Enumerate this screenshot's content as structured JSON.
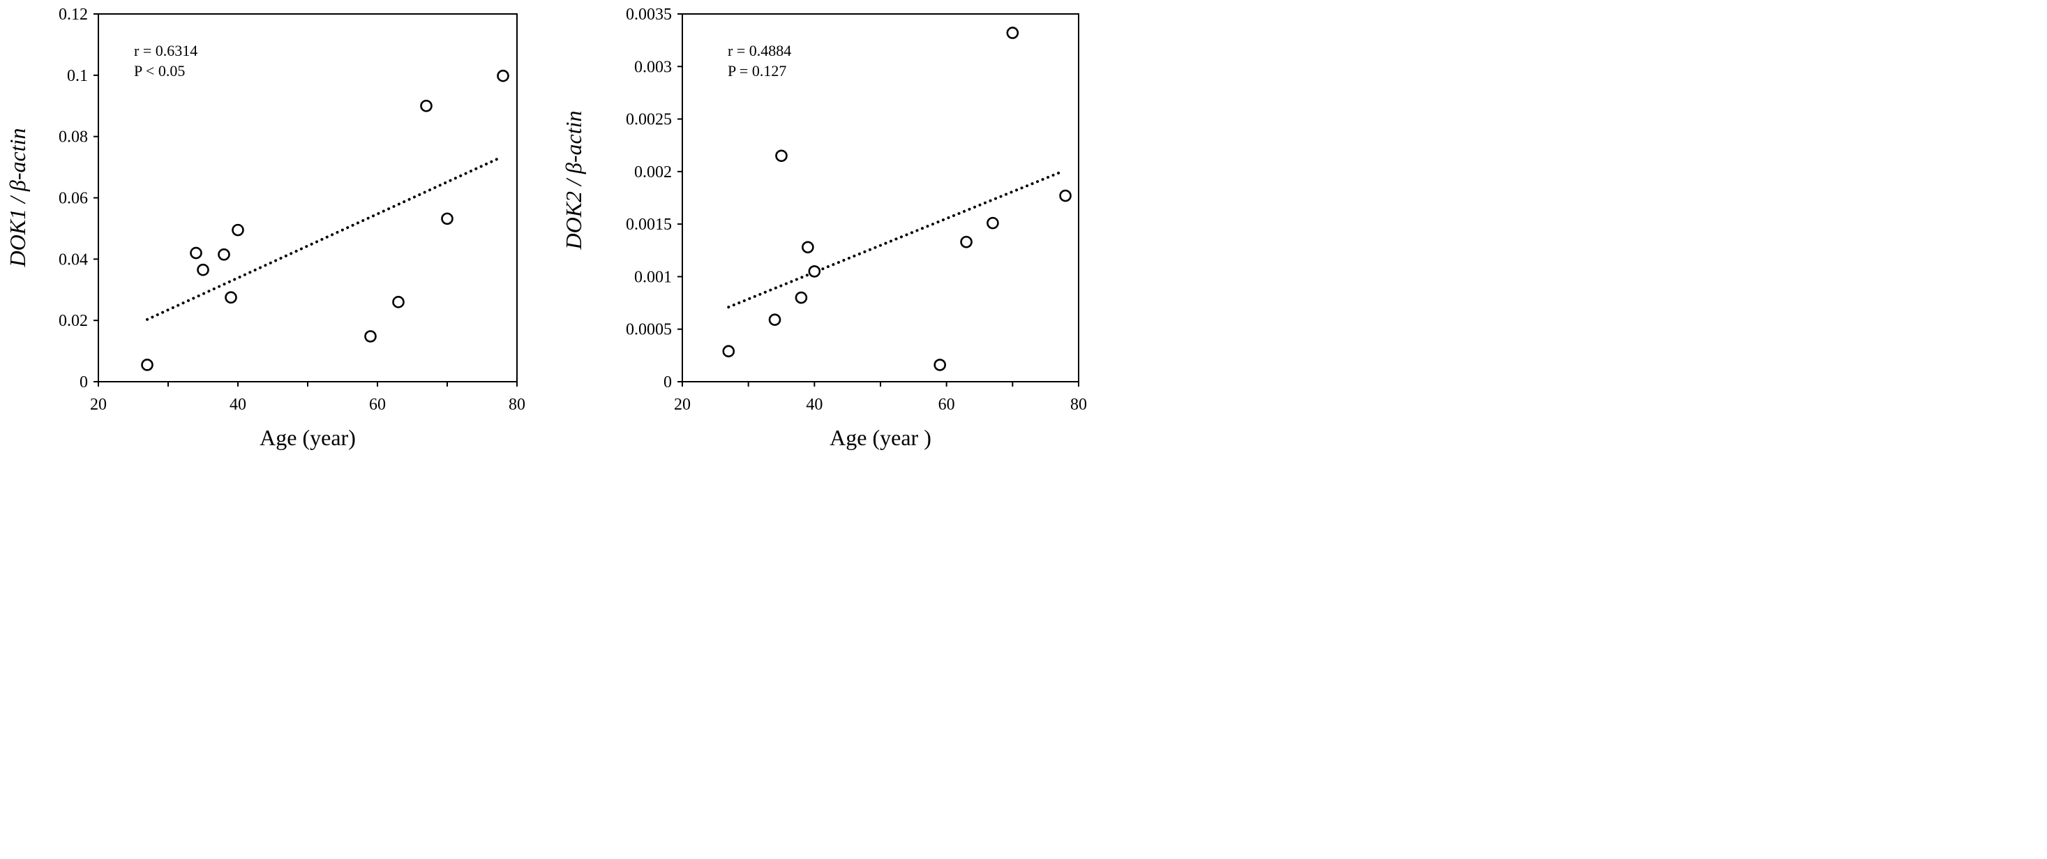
{
  "chart_data": [
    {
      "type": "scatter",
      "xlabel": "Age (year)",
      "ylabel": "DOK1 / β-actin",
      "xlim": [
        20,
        80
      ],
      "ylim": [
        0,
        0.12
      ],
      "x_ticks": [
        "20",
        "40",
        "60",
        "80"
      ],
      "x_minor_ticks": [
        30,
        50,
        70
      ],
      "y_ticks": [
        "0",
        "0.02",
        "0.04",
        "0.06",
        "0.08",
        "0.1",
        "0.12"
      ],
      "annotations": {
        "r": "r = 0.6314",
        "p": "P < 0.05"
      },
      "points": [
        {
          "x": 27,
          "y": 0.0055
        },
        {
          "x": 34,
          "y": 0.042
        },
        {
          "x": 35,
          "y": 0.0365
        },
        {
          "x": 38,
          "y": 0.0415
        },
        {
          "x": 39,
          "y": 0.0275
        },
        {
          "x": 40,
          "y": 0.0495
        },
        {
          "x": 59,
          "y": 0.0148
        },
        {
          "x": 63,
          "y": 0.026
        },
        {
          "x": 67,
          "y": 0.09
        },
        {
          "x": 70,
          "y": 0.0532
        },
        {
          "x": 78,
          "y": 0.0998
        }
      ],
      "trendline": {
        "style": "dotted",
        "x": [
          27,
          77.5
        ],
        "y": [
          0.0203,
          0.073
        ]
      },
      "grid": false
    },
    {
      "type": "scatter",
      "xlabel": "Age (year )",
      "ylabel": "DOK2 / β-actin",
      "xlim": [
        20,
        80
      ],
      "ylim": [
        0,
        0.0035
      ],
      "x_ticks": [
        "20",
        "40",
        "60",
        "80"
      ],
      "x_minor_ticks": [
        30,
        50,
        70
      ],
      "y_ticks": [
        "0",
        "0.0005",
        "0.001",
        "0.0015",
        "0.002",
        "0.0025",
        "0.003",
        "0.0035"
      ],
      "annotations": {
        "r": "r = 0.4884",
        "p": "P =  0.127"
      },
      "points": [
        {
          "x": 27,
          "y": 0.00029
        },
        {
          "x": 34,
          "y": 0.00059
        },
        {
          "x": 35,
          "y": 0.00215
        },
        {
          "x": 38,
          "y": 0.0008
        },
        {
          "x": 39,
          "y": 0.00128
        },
        {
          "x": 40,
          "y": 0.00105
        },
        {
          "x": 59,
          "y": 0.00016
        },
        {
          "x": 63,
          "y": 0.00133
        },
        {
          "x": 67,
          "y": 0.00151
        },
        {
          "x": 70,
          "y": 0.00332
        },
        {
          "x": 78,
          "y": 0.00177
        }
      ],
      "trendline": {
        "style": "dotted",
        "x": [
          27,
          77.5
        ],
        "y": [
          0.00071,
          0.002
        ]
      },
      "grid": false
    }
  ]
}
